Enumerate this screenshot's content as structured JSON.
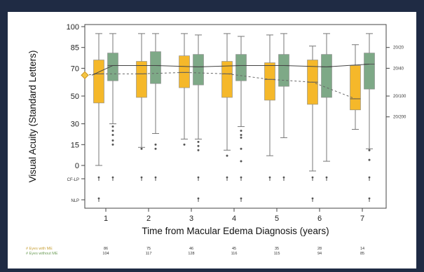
{
  "chart_data": {
    "type": "box",
    "xlabel": "Time from Macular Edema Diagnosis (years)",
    "ylabel": "Visual Acuity (Standard Letters)",
    "categories": [
      "1",
      "2",
      "3",
      "4",
      "5",
      "6",
      "7"
    ],
    "y_ticks": [
      "100",
      "85",
      "70",
      "50",
      "30",
      "15",
      "0"
    ],
    "y_tick_values": [
      100,
      85,
      70,
      50,
      30,
      15,
      0
    ],
    "y_extra_ticks": [
      "CF-LP",
      "NLP"
    ],
    "y_right_ticks": [
      {
        "label": "20/20",
        "value": 85
      },
      {
        "label": "20/40",
        "value": 70
      },
      {
        "label": "20/100",
        "value": 50
      },
      {
        "label": "20/200",
        "value": 35
      }
    ],
    "ylim": [
      0,
      100
    ],
    "baseline": 65,
    "series": [
      {
        "name": "# Eyes with ME",
        "color": "#f5b82a",
        "boxes": [
          {
            "x": 1,
            "min": 0,
            "q1": 45,
            "median": 66,
            "q3": 76,
            "max": 95,
            "outliers": [],
            "low": [
              "CF-LP",
              "NLP"
            ]
          },
          {
            "x": 2,
            "min": 13,
            "q1": 49,
            "median": 66,
            "q3": 75,
            "max": 95,
            "outliers": [
              12
            ],
            "low": [
              "CF-LP"
            ]
          },
          {
            "x": 3,
            "min": 19,
            "q1": 56,
            "median": 67,
            "q3": 79,
            "max": 95,
            "outliers": [
              15
            ],
            "low": []
          },
          {
            "x": 4,
            "min": 11,
            "q1": 49,
            "median": 66,
            "q3": 75,
            "max": 95,
            "outliers": [
              7
            ],
            "low": [
              "CF-LP"
            ]
          },
          {
            "x": 5,
            "min": 7,
            "q1": 47,
            "median": 62,
            "q3": 74,
            "max": 94,
            "outliers": [],
            "low": [
              "CF-LP"
            ]
          },
          {
            "x": 6,
            "min": -4,
            "q1": 44,
            "median": 60,
            "q3": 76,
            "max": 86,
            "outliers": [],
            "low": [
              "CF-LP",
              "NLP"
            ]
          },
          {
            "x": 7,
            "min": 26,
            "q1": 40,
            "median": 48,
            "q3": 72,
            "max": 87,
            "outliers": [],
            "low": []
          }
        ]
      },
      {
        "name": "# Eyes without ME",
        "color": "#7ea987",
        "boxes": [
          {
            "x": 1,
            "min": 30,
            "q1": 61,
            "median": 72,
            "q3": 81,
            "max": 95,
            "outliers": [
              28,
              25,
              22,
              18,
              15
            ],
            "low": [
              "CF-LP"
            ]
          },
          {
            "x": 2,
            "min": 23,
            "q1": 59,
            "median": 72,
            "q3": 82,
            "max": 95,
            "outliers": [
              15,
              12
            ],
            "low": [
              "CF-LP"
            ]
          },
          {
            "x": 3,
            "min": 19,
            "q1": 58,
            "median": 71,
            "q3": 80,
            "max": 94,
            "outliers": [
              17,
              14,
              11
            ],
            "low": [
              "CF-LP",
              "NLP"
            ]
          },
          {
            "x": 4,
            "min": 28,
            "q1": 61,
            "median": 72,
            "q3": 80,
            "max": 93,
            "outliers": [
              25,
              22,
              20,
              12,
              3
            ],
            "low": [
              "CF-LP",
              "NLP"
            ]
          },
          {
            "x": 5,
            "min": 20,
            "q1": 57,
            "median": 72,
            "q3": 80,
            "max": 95,
            "outliers": [],
            "low": [
              "CF-LP"
            ]
          },
          {
            "x": 6,
            "min": 3,
            "q1": 49,
            "median": 71,
            "q3": 80,
            "max": 95,
            "outliers": [],
            "low": [
              "CF-LP"
            ]
          },
          {
            "x": 7,
            "min": 12,
            "q1": 55,
            "median": 73,
            "q3": 81,
            "max": 95,
            "outliers": [
              11,
              4
            ],
            "low": [
              "CF-LP",
              "NLP"
            ]
          }
        ]
      }
    ],
    "table": {
      "rows": [
        {
          "label": "# Eyes with ME",
          "color": "#c9a23a",
          "counts": [
            "86",
            "75",
            "46",
            "45",
            "35",
            "28",
            "14"
          ]
        },
        {
          "label": "# Eyes without ME",
          "color": "#6f9e5a",
          "counts": [
            "104",
            "117",
            "128",
            "116",
            "115",
            "94",
            "85"
          ]
        }
      ]
    }
  }
}
